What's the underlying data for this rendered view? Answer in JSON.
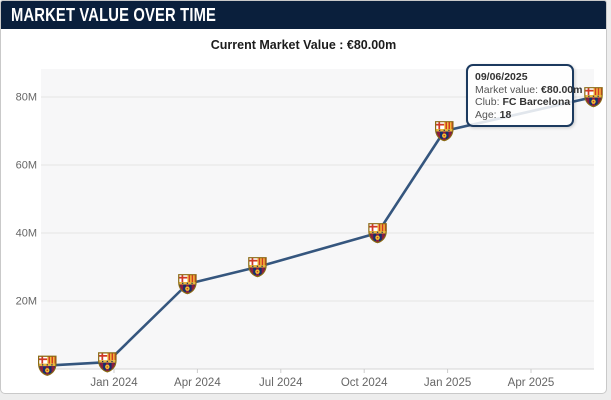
{
  "header": {
    "title": "MARKET VALUE OVER TIME"
  },
  "subtitle": "Current Market Value : €80.00m",
  "chart_data": {
    "type": "line",
    "title": "",
    "xlabel": "",
    "ylabel": "",
    "grid": "horizontal",
    "x_axis": {
      "tick_labels": [
        "Jan 2024",
        "Apr 2024",
        "Jul 2024",
        "Oct 2024",
        "Jan 2025",
        "Apr 2025"
      ],
      "tick_year_fractions": [
        2024.0,
        2024.25,
        2024.5,
        2024.75,
        2025.0,
        2025.25
      ]
    },
    "y_axis": {
      "tick_labels": [
        "20M",
        "40M",
        "60M",
        "80M"
      ],
      "tick_values": [
        20,
        40,
        60,
        80
      ],
      "ylim": [
        0,
        88
      ]
    },
    "series": [
      {
        "name": "Market value",
        "marker": "fc-barcelona-crest",
        "points": [
          {
            "date": "Oct 2023",
            "t": 2023.8,
            "value": 1
          },
          {
            "date": "Dec 2023",
            "t": 2023.98,
            "value": 2
          },
          {
            "date": "Mar 2024",
            "t": 2024.22,
            "value": 25
          },
          {
            "date": "Jun 2024",
            "t": 2024.43,
            "value": 30
          },
          {
            "date": "Oct 2024",
            "t": 2024.79,
            "value": 40
          },
          {
            "date": "Dec 2024",
            "t": 2024.99,
            "value": 70
          },
          {
            "date": "09/06/2025",
            "t": 2025.44,
            "value": 80
          }
        ]
      }
    ]
  },
  "tooltip": {
    "date": "09/06/2025",
    "rows": [
      {
        "label": "Market value:",
        "value": "€80.00m"
      },
      {
        "label": "Club:",
        "value": "FC Barcelona"
      },
      {
        "label": "Age:",
        "value": "18"
      }
    ]
  },
  "colors": {
    "header_bg": "#0a1f3c",
    "line": "#35567e",
    "tooltip_border": "#1c3a5f",
    "plot_bg": "#f7f7f8",
    "grid_line": "#e4e4e4",
    "axis_line": "#d6d6d6",
    "axis_label": "#666666",
    "page_bg": "#ededed"
  }
}
